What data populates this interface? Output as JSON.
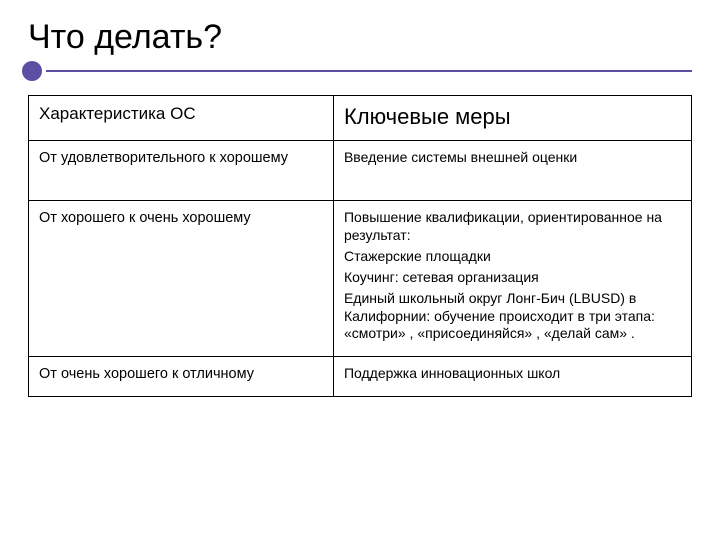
{
  "slide": {
    "title": "Что делать?",
    "accent_color": "#5a4fa2",
    "table": {
      "columns": [
        {
          "label": "Характеристика ОС",
          "fontsize": 17
        },
        {
          "label": "Ключевые меры",
          "fontsize": 22
        }
      ],
      "column_widths_percent": [
        46,
        54
      ],
      "border_color": "#000000",
      "rows": [
        {
          "left": "От удовлетворительного к хорошему",
          "right_paras": [
            "Введение системы внешней оценки"
          ]
        },
        {
          "left": "От хорошего к очень хорошему",
          "right_paras": [
            "Повышение квалификации, ориентированное на результат:",
            "Стажерские площадки",
            "Коучинг: сетевая организация",
            "Единый школьный округ Лонг-Бич (LBUSD) в Калифорнии: обучение происходит в три этапа: «смотри» , «присоединяйся» , «делай сам» ."
          ]
        },
        {
          "left": "От очень хорошего к отличному",
          "right_paras": [
            "Поддержка инновационных школ"
          ]
        }
      ]
    }
  }
}
